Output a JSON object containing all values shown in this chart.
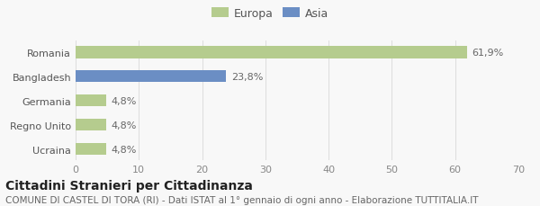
{
  "categories": [
    "Romania",
    "Bangladesh",
    "Germania",
    "Regno Unito",
    "Ucraina"
  ],
  "values": [
    61.9,
    23.8,
    4.8,
    4.8,
    4.8
  ],
  "colors": [
    "#b5cc8e",
    "#6b8ec4",
    "#b5cc8e",
    "#b5cc8e",
    "#b5cc8e"
  ],
  "labels": [
    "61,9%",
    "23,8%",
    "4,8%",
    "4,8%",
    "4,8%"
  ],
  "legend": [
    {
      "label": "Europa",
      "color": "#b5cc8e"
    },
    {
      "label": "Asia",
      "color": "#6b8ec4"
    }
  ],
  "xlim": [
    0,
    70
  ],
  "xticks": [
    0,
    10,
    20,
    30,
    40,
    50,
    60,
    70
  ],
  "title": "Cittadini Stranieri per Cittadinanza",
  "subtitle": "COMUNE DI CASTEL DI TORA (RI) - Dati ISTAT al 1° gennaio di ogni anno - Elaborazione TUTTITALIA.IT",
  "background_color": "#f8f8f8",
  "bar_height": 0.5,
  "title_fontsize": 10,
  "subtitle_fontsize": 7.5,
  "label_fontsize": 8,
  "tick_fontsize": 8,
  "legend_fontsize": 9
}
